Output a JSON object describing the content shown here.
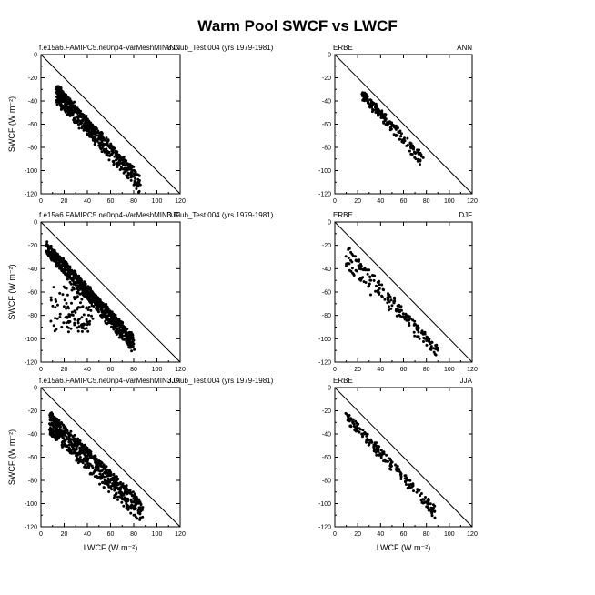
{
  "figure": {
    "title": "Warm Pool SWCF vs LWCF"
  },
  "chart_data": [
    {
      "type": "scatter",
      "panel": "model-ann",
      "label_left": "f.e15a6.FAMIPC5.ne0np4-VarMeshMIN3.Club_Test.004 (yrs 1979-1981)",
      "label_right": "ANN",
      "xlabel": "",
      "ylabel": "SWCF (W m⁻²)",
      "xlim": [
        0,
        120
      ],
      "ylim": [
        -120,
        0
      ],
      "xticks": [
        0,
        20,
        40,
        60,
        80,
        100,
        120
      ],
      "yticks": [
        0,
        -20,
        -40,
        -60,
        -80,
        -100,
        -120
      ],
      "reference_line": "y = -x",
      "cloud": {
        "n": 650,
        "x_range": [
          14,
          85
        ],
        "y_top": [
          -27,
          -105
        ],
        "y_bottom": [
          -42,
          -118
        ],
        "bias": 1.5
      }
    },
    {
      "type": "scatter",
      "panel": "obs-ann",
      "label_left": "ERBE",
      "label_right": "ANN",
      "xlabel": "",
      "ylabel": "",
      "xlim": [
        0,
        120
      ],
      "ylim": [
        -120,
        0
      ],
      "xticks": [
        0,
        20,
        40,
        60,
        80,
        100,
        120
      ],
      "yticks": [
        0,
        -20,
        -40,
        -60,
        -80,
        -100,
        -120
      ],
      "reference_line": "y = -x",
      "cloud": {
        "n": 180,
        "x_range": [
          24,
          77
        ],
        "y_top": [
          -32,
          -87
        ],
        "y_bottom": [
          -38,
          -97
        ],
        "bias": 1.2
      }
    },
    {
      "type": "scatter",
      "panel": "model-djf",
      "label_left": "f.e15a6.FAMIPC5.ne0np4-VarMeshMIN3.Club_Test.004 (yrs 1979-1981)",
      "label_right": "DJF",
      "xlabel": "",
      "ylabel": "SWCF (W m⁻²)",
      "xlim": [
        0,
        120
      ],
      "ylim": [
        -120,
        0
      ],
      "xticks": [
        0,
        20,
        40,
        60,
        80,
        100,
        120
      ],
      "yticks": [
        0,
        -20,
        -40,
        -60,
        -80,
        -100,
        -120
      ],
      "reference_line": "y = -x",
      "cloud": {
        "n": 800,
        "x_range": [
          5,
          80
        ],
        "y_top": [
          -18,
          -98
        ],
        "y_bottom": [
          -28,
          -112
        ],
        "bias": 1.0,
        "scatter_below": {
          "n": 120,
          "x_range": [
            8,
            45
          ],
          "y_range": [
            -55,
            -95
          ]
        }
      }
    },
    {
      "type": "scatter",
      "panel": "obs-djf",
      "label_left": "ERBE",
      "label_right": "DJF",
      "xlabel": "",
      "ylabel": "",
      "xlim": [
        0,
        120
      ],
      "ylim": [
        -120,
        0
      ],
      "xticks": [
        0,
        20,
        40,
        60,
        80,
        100,
        120
      ],
      "yticks": [
        0,
        -20,
        -40,
        -60,
        -80,
        -100,
        -120
      ],
      "reference_line": "y = -x",
      "cloud": {
        "n": 200,
        "x_range": [
          10,
          90
        ],
        "y_top": [
          -20,
          -108
        ],
        "y_bottom": [
          -40,
          -116
        ],
        "bias": 1.0
      }
    },
    {
      "type": "scatter",
      "panel": "model-jja",
      "label_left": "f.e15a6.FAMIPC5.ne0np4-VarMeshMIN3.Club_Test.004 (yrs 1979-1981)",
      "label_right": "JJA",
      "xlabel": "LWCF (W m⁻²)",
      "ylabel": "SWCF (W m⁻²)",
      "xlim": [
        0,
        120
      ],
      "ylim": [
        -120,
        0
      ],
      "xticks": [
        0,
        20,
        40,
        60,
        80,
        100,
        120
      ],
      "yticks": [
        0,
        -20,
        -40,
        -60,
        -80,
        -100,
        -120
      ],
      "reference_line": "y = -x",
      "cloud": {
        "n": 750,
        "x_range": [
          8,
          88
        ],
        "y_top": [
          -22,
          -100
        ],
        "y_bottom": [
          -40,
          -118
        ],
        "bias": 1.3
      }
    },
    {
      "type": "scatter",
      "panel": "obs-jja",
      "label_left": "ERBE",
      "label_right": "JJA",
      "xlabel": "LWCF (W m⁻²)",
      "ylabel": "",
      "xlim": [
        0,
        120
      ],
      "ylim": [
        -120,
        0
      ],
      "xticks": [
        0,
        20,
        40,
        60,
        80,
        100,
        120
      ],
      "yticks": [
        0,
        -20,
        -40,
        -60,
        -80,
        -100,
        -120
      ],
      "reference_line": "y = -x",
      "cloud": {
        "n": 200,
        "x_range": [
          10,
          87
        ],
        "y_top": [
          -22,
          -102
        ],
        "y_bottom": [
          -28,
          -112
        ],
        "bias": 1.1
      }
    }
  ]
}
